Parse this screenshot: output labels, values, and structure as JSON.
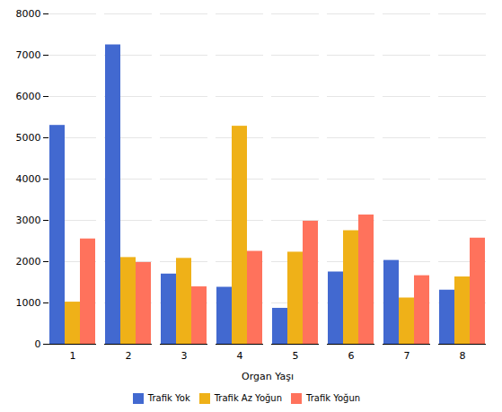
{
  "chart_data": {
    "type": "bar",
    "xlabel": "Organ Yaşı",
    "categories": [
      "1",
      "2",
      "3",
      "4",
      "5",
      "6",
      "7",
      "8"
    ],
    "series": [
      {
        "name": "Trafik Yok",
        "values": [
          5300,
          7250,
          1700,
          1380,
          870,
          1750,
          2030,
          1310
        ]
      },
      {
        "name": "Trafik Az Yoğun",
        "values": [
          1020,
          2100,
          2080,
          5280,
          2230,
          2750,
          1120,
          1630
        ]
      },
      {
        "name": "Trafik Yoğun",
        "values": [
          2550,
          1980,
          1390,
          2250,
          2980,
          3130,
          1660,
          2570
        ]
      }
    ],
    "ylim": [
      0,
      8000
    ],
    "yticks": [
      0,
      1000,
      2000,
      3000,
      4000,
      5000,
      6000,
      7000,
      8000
    ],
    "grid": true,
    "legend": "bottom"
  }
}
